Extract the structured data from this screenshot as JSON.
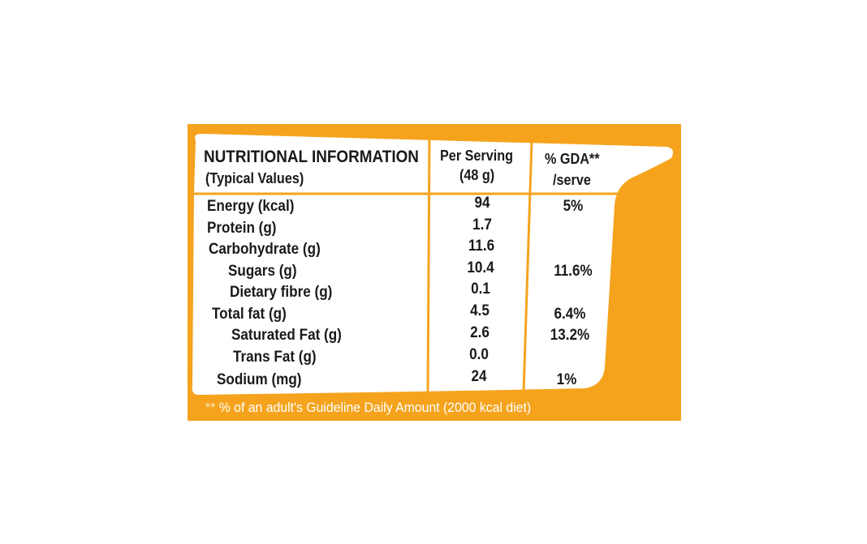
{
  "header": {
    "title": "NUTRITIONAL INFORMATION",
    "subtitle": "(Typical Values)",
    "col_serving_line1": "Per Serving",
    "col_serving_line2": "(48 g)",
    "col_gda_line1": "% GDA**",
    "col_gda_line2": "/serve"
  },
  "rows": [
    {
      "label": "Energy (kcal)",
      "value": "94",
      "gda": "5%"
    },
    {
      "label": "Protein (g)",
      "value": "1.7",
      "gda": ""
    },
    {
      "label": "Carbohydrate (g)",
      "value": "11.6",
      "gda": ""
    },
    {
      "label": "Sugars (g)",
      "value": "10.4",
      "gda": "11.6%"
    },
    {
      "label": "Dietary fibre (g)",
      "value": "0.1",
      "gda": ""
    },
    {
      "label": "Total fat (g)",
      "value": "4.5",
      "gda": "6.4%"
    },
    {
      "label": "Saturated Fat (g)",
      "value": "2.6",
      "gda": "13.2%"
    },
    {
      "label": "Trans Fat (g)",
      "value": "0.0",
      "gda": ""
    },
    {
      "label": "Sodium (mg)",
      "value": "24",
      "gda": "1%"
    }
  ],
  "footnote": {
    "stars": "**",
    "text": " % of an adult's Guideline Daily Amount (2000 kcal diet)"
  },
  "colors": {
    "panel": "#F5A31D",
    "card": "#FFFFFF",
    "text": "#1A1A1A",
    "footnote": "#FFFFFF"
  }
}
